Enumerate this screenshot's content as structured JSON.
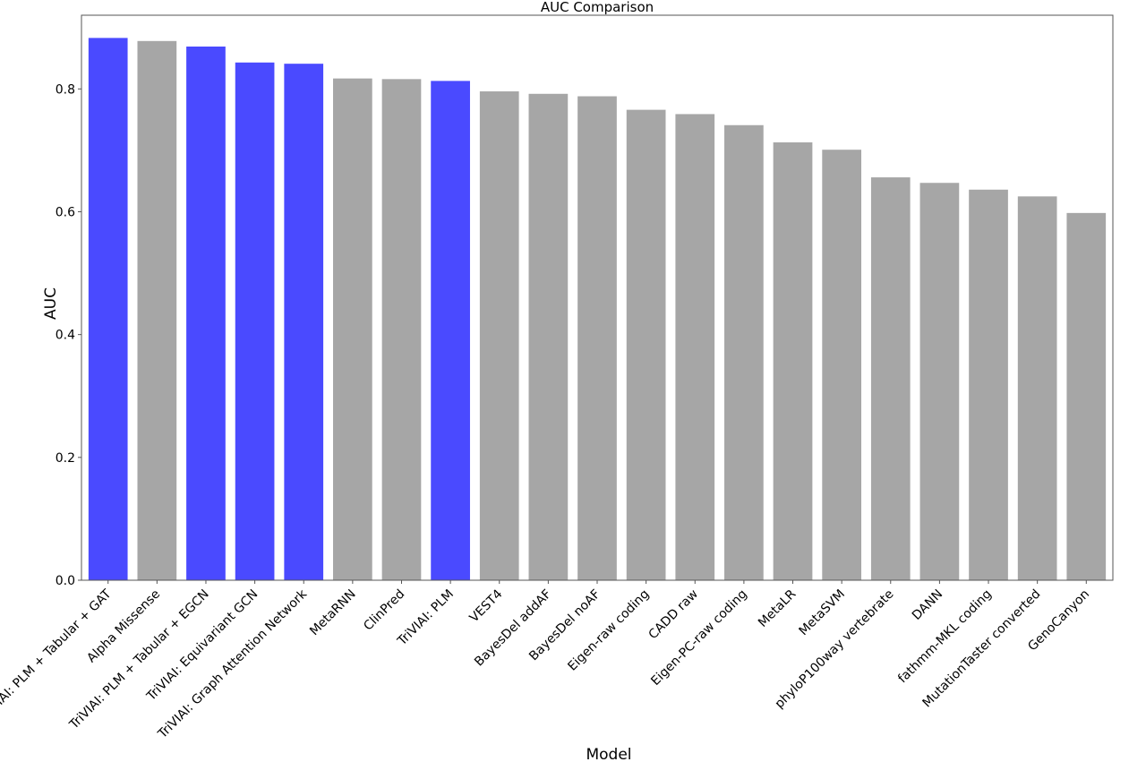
{
  "chart_data": {
    "type": "bar",
    "title": "AUC Comparison",
    "xlabel": "Model",
    "ylabel": "AUC",
    "ylim": [
      0,
      0.92
    ],
    "yticks": [
      "0.0",
      "0.2",
      "0.4",
      "0.6",
      "0.8"
    ],
    "grid": false,
    "categories": [
      "TriVIAI: PLM + Tabular + GAT",
      "Alpha Missense",
      "TriVIAI: PLM + Tabular + EGCN",
      "TriVIAI: Equivariant GCN",
      "TriVIAI: Graph Attention Network",
      "MetaRNN",
      "ClinPred",
      "TriVIAI: PLM",
      "VEST4",
      "BayesDel addAF",
      "BayesDel noAF",
      "Eigen-raw coding",
      "CADD raw",
      "Eigen-PC-raw coding",
      "MetaLR",
      "MetaSVM",
      "phyloP100way vertebrate",
      "DANN",
      "fathmm-MKL coding",
      "MutationTaster converted",
      "GenoCanyon"
    ],
    "values": [
      0.883,
      0.878,
      0.869,
      0.843,
      0.841,
      0.817,
      0.816,
      0.813,
      0.796,
      0.792,
      0.788,
      0.766,
      0.759,
      0.741,
      0.713,
      0.701,
      0.656,
      0.647,
      0.636,
      0.625,
      0.598
    ],
    "highlighted": [
      true,
      false,
      true,
      true,
      true,
      false,
      false,
      true,
      false,
      false,
      false,
      false,
      false,
      false,
      false,
      false,
      false,
      false,
      false,
      false,
      false
    ],
    "colors": {
      "highlight": "#4a4aff",
      "default": "#a6a6a6",
      "axis": "#555555"
    }
  }
}
